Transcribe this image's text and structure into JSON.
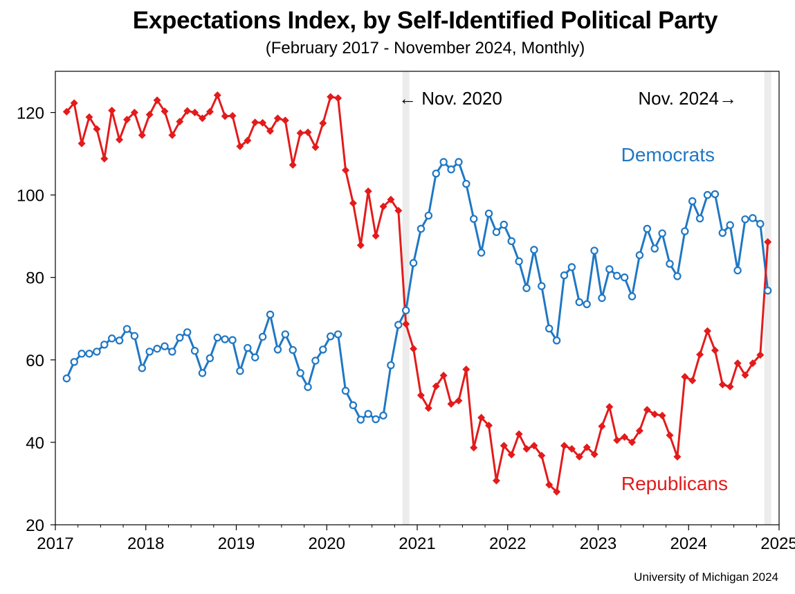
{
  "chart_data": {
    "type": "line",
    "title": "Expectations Index, by Self-Identified Political Party",
    "subtitle": "(February 2017 - November 2024, Monthly)",
    "source": "University of Michigan 2024",
    "xlim": [
      2017,
      2025
    ],
    "ylim": [
      20,
      130
    ],
    "x_ticks": [
      "2017",
      "2018",
      "2019",
      "2020",
      "2021",
      "2022",
      "2023",
      "2024",
      "2025"
    ],
    "y_ticks": [
      "20",
      "40",
      "60",
      "80",
      "100",
      "120"
    ],
    "grid": false,
    "start": "2017-02",
    "shaded_periods": [
      "2020-11",
      "2024-11"
    ],
    "annotations": [
      "← Nov. 2020",
      "Nov. 2024→"
    ],
    "series": [
      {
        "name": "Democrats",
        "color": "#1f77c4",
        "marker": "open-circle",
        "values": [
          55.5,
          59.5,
          61.5,
          61.5,
          62,
          63.7,
          65.2,
          64.7,
          67.5,
          65.8,
          58,
          62,
          62.7,
          63.3,
          62,
          65.4,
          66.7,
          62.2,
          56.8,
          60.4,
          65.4,
          65,
          64.8,
          57.3,
          62.9,
          60.6,
          65.6,
          71,
          62.5,
          66.2,
          62.4,
          56.8,
          53.4,
          59.8,
          62.5,
          65.7,
          66.2,
          52.5,
          49,
          45.5,
          46.9,
          45.6,
          46.5,
          58.7,
          68.5,
          72,
          83.5,
          91.8,
          95,
          105.2,
          108,
          106.2,
          108,
          102.7,
          94.2,
          86,
          95.5,
          91,
          92.8,
          88.8,
          83.9,
          77.4,
          86.7,
          77.9,
          67.6,
          64.7,
          80.5,
          82.5,
          74,
          73.5,
          86.5,
          75,
          82,
          80.4,
          80,
          75.4,
          85.4,
          91.8,
          87,
          90.7,
          83.3,
          80.3,
          91.2,
          98.5,
          94.3,
          100,
          100.2,
          90.8,
          92.7,
          81.7,
          94.1,
          94.4,
          93,
          76.8
        ]
      },
      {
        "name": "Republicans",
        "color": "#e31b1b",
        "marker": "diamond",
        "values": [
          120.2,
          122.3,
          112.5,
          118.9,
          116,
          108.8,
          120.5,
          113.4,
          118.3,
          120,
          114.5,
          119.5,
          123,
          120.3,
          114.5,
          117.8,
          120.4,
          120,
          118.6,
          120.2,
          124.2,
          119.1,
          119.2,
          111.8,
          113.2,
          117.6,
          117.5,
          115.5,
          118.6,
          118.1,
          107.3,
          115,
          115.2,
          111.6,
          117.4,
          123.8,
          123.5,
          106,
          98,
          87.8,
          100.9,
          90.1,
          97.2,
          98.9,
          96.2,
          68.7,
          62.7,
          51.4,
          48.3,
          53.6,
          56.2,
          49.3,
          50.1,
          57.7,
          38.7,
          46,
          44.1,
          30.7,
          39.2,
          37,
          42,
          38.4,
          39.2,
          36.8,
          29.7,
          28,
          39.2,
          38.4,
          36.5,
          38.8,
          37.1,
          43.9,
          48.6,
          40.5,
          41.3,
          40,
          42.8,
          47.9,
          46.8,
          46.5,
          41.7,
          36.5,
          55.9,
          55,
          61.3,
          67,
          62.3,
          54,
          53.5,
          59.2,
          56.3,
          59.2,
          61.2,
          88.6
        ]
      }
    ]
  }
}
